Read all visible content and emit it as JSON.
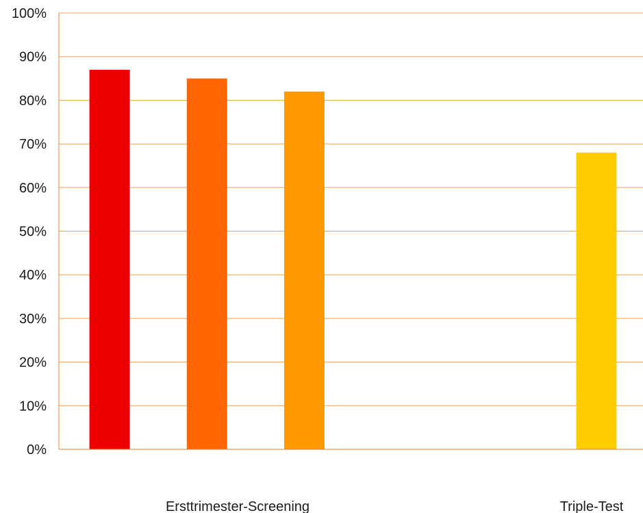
{
  "chart_data": {
    "type": "bar",
    "title": "",
    "xlabel": "",
    "ylabel": "",
    "ylim": [
      0,
      100
    ],
    "yticks": [
      "0%",
      "10%",
      "20%",
      "30%",
      "40%",
      "50%",
      "60%",
      "70%",
      "80%",
      "90%",
      "100%"
    ],
    "grid": true,
    "legend": "none",
    "category_labels": [
      "Ersttrimester-Screening",
      "Triple-Test"
    ],
    "bars": [
      {
        "group": "Ersttrimester-Screening",
        "value": 87,
        "color": "#EE0000"
      },
      {
        "group": "Ersttrimester-Screening",
        "value": 85,
        "color": "#FF6600"
      },
      {
        "group": "Ersttrimester-Screening",
        "value": 82,
        "color": "#FF9900"
      },
      {
        "group": "Triple-Test",
        "value": 68,
        "color": "#FFCC00"
      }
    ],
    "colors": {
      "grid": "#F0A050",
      "axis": "#F08030"
    }
  }
}
